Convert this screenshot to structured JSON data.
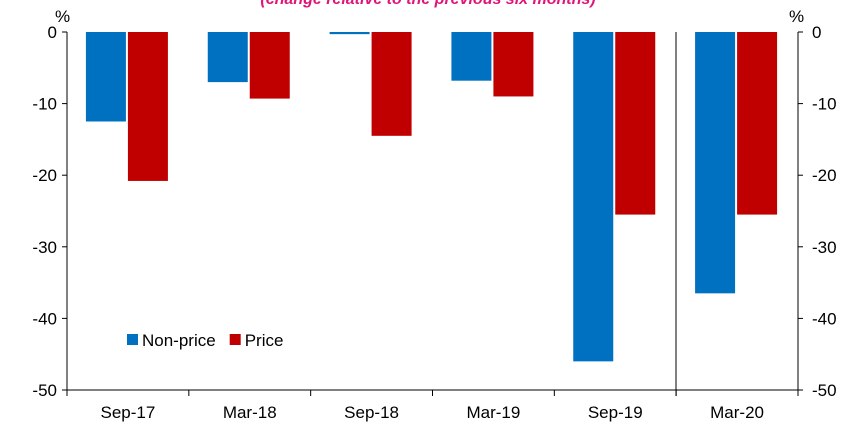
{
  "chart_data": {
    "type": "bar",
    "subtitle": "(change relative to the previous six months)",
    "y_unit": "%",
    "categories": [
      "Sep-17",
      "Mar-18",
      "Sep-18",
      "Mar-19",
      "Sep-19",
      "Mar-20"
    ],
    "series": [
      {
        "name": "Non-price",
        "color": "#0070c0",
        "values": [
          -12.5,
          -7,
          -0.3,
          -6.8,
          -46,
          -36.5
        ]
      },
      {
        "name": "Price",
        "color": "#c00000",
        "values": [
          -20.8,
          -9.3,
          -14.5,
          -9,
          -25.5,
          -25.5
        ]
      }
    ],
    "ylim": [
      -50,
      0
    ],
    "yticks": [
      0,
      -10,
      -20,
      -30,
      -40,
      -50
    ],
    "legend": "lower left"
  }
}
